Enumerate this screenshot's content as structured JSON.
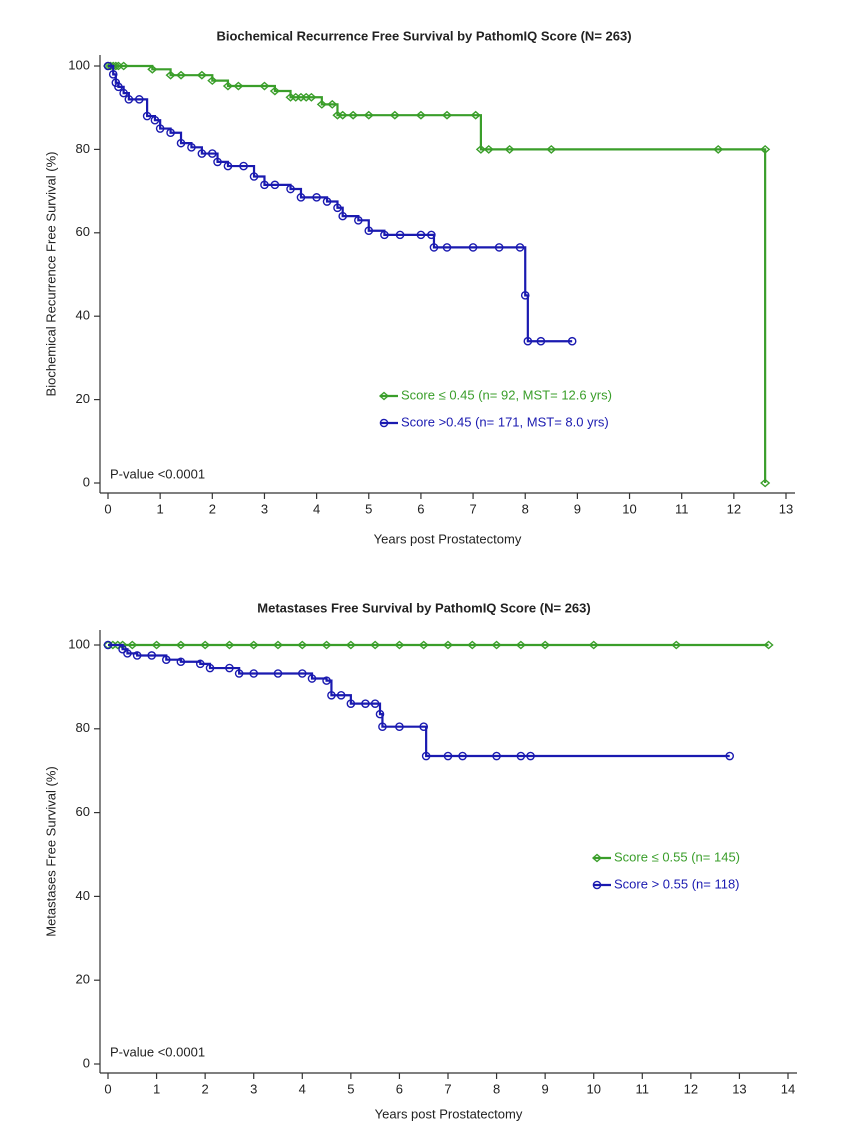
{
  "chart_data": [
    {
      "type": "line",
      "title": "Biochemical Recurrence Free Survival by PathomIQ Score (N= 263)",
      "x_label": "Years post Prostatectomy",
      "y_label": "Biochemical Recurrence Free Survival (%)",
      "annotation": "P-value <0.0001",
      "steps": true,
      "xlim": [
        0,
        13
      ],
      "ylim": [
        0,
        100
      ],
      "xticks": [
        0,
        1,
        2,
        3,
        4,
        5,
        6,
        7,
        8,
        9,
        10,
        11,
        12,
        13
      ],
      "yticks": [
        0,
        20,
        40,
        60,
        80,
        100
      ],
      "series": [
        {
          "name": "Score ≤ 0.45 (n= 92, MST= 12.6 yrs)",
          "color": "#3a9e2a",
          "marker": "diamond",
          "x": [
            0,
            0.05,
            0.1,
            0.15,
            0.2,
            0.3,
            0.85,
            1.2,
            1.4,
            1.8,
            2.0,
            2.3,
            2.5,
            3.0,
            3.2,
            3.5,
            3.6,
            3.7,
            3.8,
            3.9,
            4.1,
            4.3,
            4.4,
            4.5,
            4.7,
            5.0,
            5.5,
            6.0,
            6.5,
            7.05,
            7.15,
            7.3,
            7.7,
            8.5,
            11.7,
            12.6,
            12.6
          ],
          "values": [
            100,
            100,
            100,
            100,
            100,
            100,
            99.2,
            97.8,
            97.8,
            97.8,
            96.5,
            95.2,
            95.2,
            95.2,
            94,
            92.5,
            92.5,
            92.5,
            92.5,
            92.5,
            90.8,
            90.8,
            88.2,
            88.2,
            88.2,
            88.2,
            88.2,
            88.2,
            88.2,
            88.2,
            80,
            80,
            80,
            80,
            80,
            80,
            0
          ]
        },
        {
          "name": "Score >0.45 (n= 171, MST= 8.0 yrs)",
          "color": "#1a1ab0",
          "marker": "circle",
          "x": [
            0,
            0.1,
            0.15,
            0.2,
            0.3,
            0.4,
            0.6,
            0.75,
            0.9,
            1.0,
            1.2,
            1.4,
            1.6,
            1.8,
            2.0,
            2.1,
            2.3,
            2.6,
            2.8,
            3.0,
            3.2,
            3.5,
            3.7,
            4.0,
            4.2,
            4.4,
            4.5,
            4.8,
            5.0,
            5.3,
            5.6,
            6.0,
            6.2,
            6.25,
            6.5,
            7.0,
            7.5,
            7.9,
            8.0,
            8.05,
            8.3,
            8.9
          ],
          "values": [
            100,
            98,
            96,
            95,
            93.5,
            92,
            92,
            88,
            87,
            85,
            84,
            81.5,
            80.5,
            79,
            79,
            77,
            76,
            76,
            73.5,
            71.5,
            71.5,
            70.5,
            68.5,
            68.5,
            67.5,
            66,
            64,
            63,
            60.5,
            59.5,
            59.5,
            59.5,
            59.5,
            56.5,
            56.5,
            56.5,
            56.5,
            56.5,
            45,
            34,
            34,
            34
          ]
        }
      ]
    },
    {
      "type": "line",
      "title": "Metastases Free Survival by PathomIQ Score (N= 263)",
      "x_label": "Years post Prostatectomy",
      "y_label": "Metastases Free Survival (%)",
      "annotation": "P-value <0.0001",
      "steps": true,
      "xlim": [
        0,
        14
      ],
      "ylim": [
        0,
        100
      ],
      "xticks": [
        0,
        1,
        2,
        3,
        4,
        5,
        6,
        7,
        8,
        9,
        10,
        11,
        12,
        13,
        14
      ],
      "yticks": [
        0,
        20,
        40,
        60,
        80,
        100
      ],
      "series": [
        {
          "name": "Score ≤ 0.55 (n= 145)",
          "color": "#3a9e2a",
          "marker": "diamond",
          "x": [
            0,
            0.1,
            0.2,
            0.3,
            0.5,
            1.0,
            1.5,
            2.0,
            2.5,
            3.0,
            3.5,
            4.0,
            4.5,
            5.0,
            5.5,
            6.0,
            6.5,
            7.0,
            7.5,
            8.0,
            8.5,
            9.0,
            10.0,
            11.7,
            13.6
          ],
          "values": [
            100,
            100,
            100,
            100,
            100,
            100,
            100,
            100,
            100,
            100,
            100,
            100,
            100,
            100,
            100,
            100,
            100,
            100,
            100,
            100,
            100,
            100,
            100,
            100,
            100
          ]
        },
        {
          "name": "Score > 0.55 (n= 118)",
          "color": "#1a1ab0",
          "marker": "circle",
          "x": [
            0,
            0.3,
            0.4,
            0.6,
            0.9,
            1.2,
            1.5,
            1.9,
            2.1,
            2.5,
            2.7,
            3.0,
            3.5,
            4.0,
            4.2,
            4.5,
            4.6,
            4.8,
            5.0,
            5.3,
            5.5,
            5.6,
            5.65,
            6.0,
            6.5,
            6.55,
            7.0,
            7.3,
            8.0,
            8.5,
            8.7,
            12.8
          ],
          "values": [
            100,
            99,
            98,
            97.5,
            97.5,
            96.5,
            96,
            95.5,
            94.5,
            94.5,
            93.2,
            93.2,
            93.2,
            93.2,
            92,
            91.5,
            88,
            88,
            86,
            86,
            86,
            83.5,
            80.5,
            80.5,
            80.5,
            73.5,
            73.5,
            73.5,
            73.5,
            73.5,
            73.5,
            73.5
          ]
        }
      ]
    }
  ]
}
